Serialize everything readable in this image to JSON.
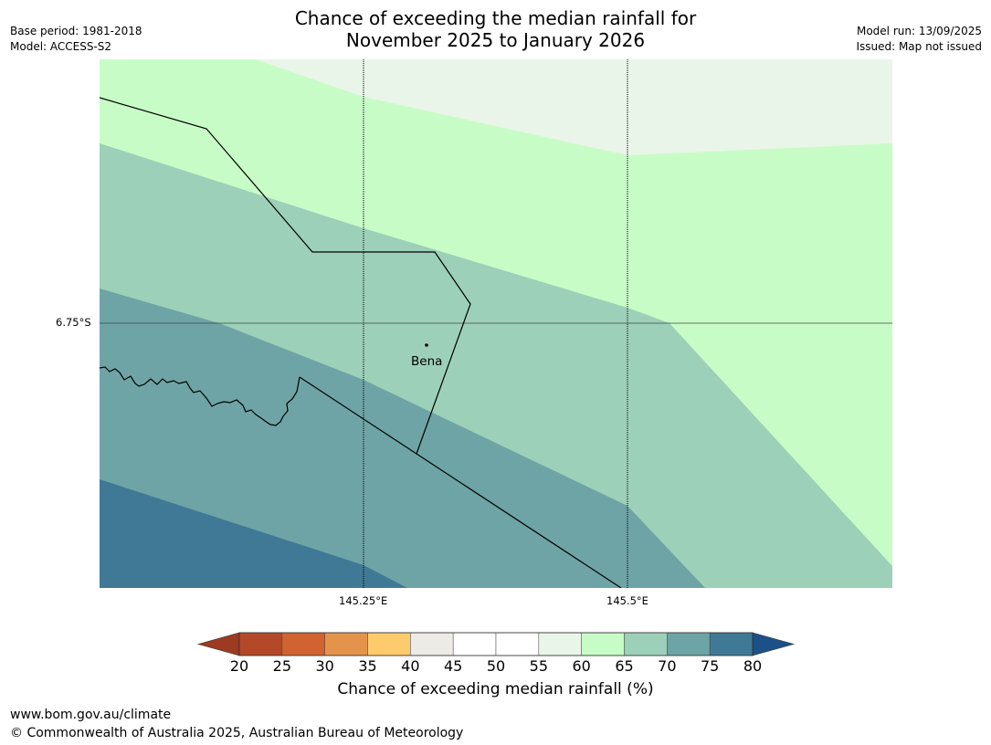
{
  "title_line1": "Chance of exceeding the median rainfall for",
  "title_line2": "November 2025 to January 2026",
  "meta_left": [
    "Base period: 1981-2018",
    "Model: ACCESS-S2"
  ],
  "meta_right": [
    "Model run: 13/09/2025",
    "Issued: Map not issued"
  ],
  "map": {
    "lat_label": "6.75°S",
    "lon_labels": [
      "145.25°E",
      "145.5°E"
    ],
    "place_label": "Bena"
  },
  "colorbar": {
    "ticks": [
      "20",
      "25",
      "30",
      "35",
      "40",
      "45",
      "50",
      "55",
      "60",
      "65",
      "70",
      "75",
      "80"
    ],
    "colors": [
      "#9c3a22",
      "#b4492a",
      "#d0632f",
      "#e4944a",
      "#fdcb6b",
      "#ecebe6",
      "#ffffff",
      "#ffffff",
      "#eaf5e9",
      "#c8fcc7",
      "#9dd0b8",
      "#6ea4a6",
      "#407996",
      "#1c5088"
    ],
    "label": "Chance of exceeding median rainfall (%)"
  },
  "footer": {
    "url": "www.bom.gov.au/climate",
    "copyright": "© Commonwealth of Australia 2025, Australian Bureau of Meteorology"
  }
}
